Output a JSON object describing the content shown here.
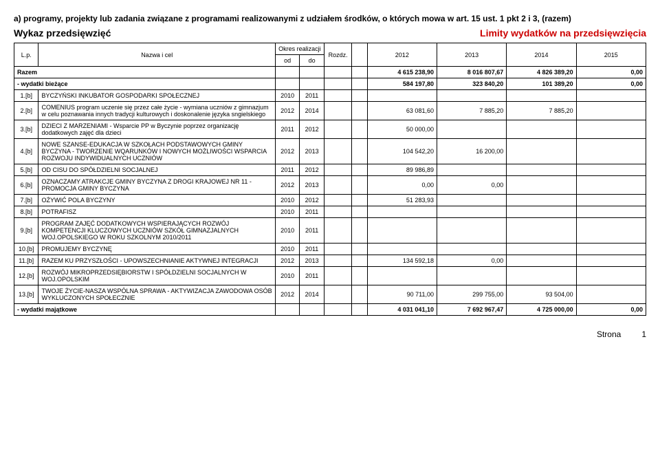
{
  "header": {
    "line_a": "a) programy, projekty lub zadania związane z programami realizowanymi z udziałem środków, o których mowa w art. 15 ust. 1 pkt 2 i 3, (razem)",
    "wykaz": "Wykaz przedsięwzięć",
    "limity": "Limity wydatków na przedsięwzięcia"
  },
  "thead": {
    "lp": "L.p.",
    "nazwa": "Nazwa i cel",
    "okres": "Okres realizacji",
    "od": "od",
    "do": "do",
    "rozdz": "Rozdz.",
    "y2012": "2012",
    "y2013": "2013",
    "y2014": "2014",
    "y2015": "2015"
  },
  "rows": [
    {
      "lp": "Razem",
      "nazwa": "",
      "od": "",
      "do": "",
      "rozdz": "",
      "v": [
        "4 615 238,90",
        "8 016 807,67",
        "4 826 389,20",
        "0,00"
      ],
      "bold": true,
      "merge_lp_nazwa": true
    },
    {
      "lp": "",
      "nazwa": "- wydatki bieżące",
      "od": "",
      "do": "",
      "rozdz": "",
      "v": [
        "584 197,80",
        "323 840,20",
        "101 389,20",
        "0,00"
      ],
      "bold": true,
      "section": true
    },
    {
      "lp": "1.[b]",
      "nazwa": "BYCZYŃSKI INKUBATOR GOSPODARKI SPOŁECZNEJ",
      "od": "2010",
      "do": "2011",
      "rozdz": "",
      "v": [
        "",
        "",
        "",
        ""
      ]
    },
    {
      "lp": "2.[b]",
      "nazwa": "COMENIUS program uczenie się przez całe życie - wymiana uczniów z gimnazjum w celu poznawania innych tradycji kulturowych i doskonalenie języka sngielskiego",
      "od": "2012",
      "do": "2014",
      "rozdz": "",
      "v": [
        "63 081,60",
        "7 885,20",
        "7 885,20",
        ""
      ]
    },
    {
      "lp": "3.[b]",
      "nazwa": "DZIECI Z MARZENIAMI - Wsparcie PP w Byczynie poprzez organizację dodatkowych zajęć dla dzieci",
      "od": "2011",
      "do": "2012",
      "rozdz": "",
      "v": [
        "50 000,00",
        "",
        "",
        ""
      ]
    },
    {
      "lp": "4.[b]",
      "nazwa": "NOWE SZANSE-EDUKACJA W SZKOŁACH PODSTAWOWYCH GMINY BYCZYNA - TWORZENIE WQARUNKÓW I NOWYCH MOŻLIWOŚCI WSPARCIA ROZWOJU INDYWIDUALNYCH UCZNIÓW",
      "od": "2012",
      "do": "2013",
      "rozdz": "",
      "v": [
        "104 542,20",
        "16 200,00",
        "",
        ""
      ]
    },
    {
      "lp": "5.[b]",
      "nazwa": "OD CISU DO SPÓŁDZIELNI SOCJALNEJ",
      "od": "2011",
      "do": "2012",
      "rozdz": "",
      "v": [
        "89 986,89",
        "",
        "",
        ""
      ]
    },
    {
      "lp": "6.[b]",
      "nazwa": "OZNACZAMY ATRAKCJE GMINY BYCZYNA Z DROGI KRAJOWEJ NR 11 - PROMOCJA GMINY BYCZYNA",
      "od": "2012",
      "do": "2013",
      "rozdz": "",
      "v": [
        "0,00",
        "0,00",
        "",
        ""
      ]
    },
    {
      "lp": "7.[b]",
      "nazwa": "OŻYWIĆ POLA BYCZYNY",
      "od": "2010",
      "do": "2012",
      "rozdz": "",
      "v": [
        "51 283,93",
        "",
        "",
        ""
      ]
    },
    {
      "lp": "8.[b]",
      "nazwa": "POTRAFISZ",
      "od": "2010",
      "do": "2011",
      "rozdz": "",
      "v": [
        "",
        "",
        "",
        ""
      ]
    },
    {
      "lp": "9.[b]",
      "nazwa": "PROGRAM ZAJĘĆ DODATKOWYCH WSPIERAJĄCYCH ROZWÓJ KOMPETENCJI KLUCZOWYCH UCZNIÓW SZKÓŁ GIMNAZJALNYCH WOJ.OPOLSKIEGO W ROKU SZKOLNYM 2010/2011",
      "od": "2010",
      "do": "2011",
      "rozdz": "",
      "v": [
        "",
        "",
        "",
        ""
      ]
    },
    {
      "lp": "10.[b]",
      "nazwa": "PROMUJEMY BYCZYNĘ",
      "od": "2010",
      "do": "2011",
      "rozdz": "",
      "v": [
        "",
        "",
        "",
        ""
      ]
    },
    {
      "lp": "11.[b]",
      "nazwa": "RAZEM KU PRZYSZŁOŚCI - UPOWSZECHNIANIE AKTYWNEJ INTEGRACJI",
      "od": "2012",
      "do": "2013",
      "rozdz": "",
      "v": [
        "134 592,18",
        "0,00",
        "",
        ""
      ]
    },
    {
      "lp": "12.[b]",
      "nazwa": "ROZWÓJ MIKROPRZEDSIĘBIORSTW I SPÓŁDZIELNI SOCJALNYCH W WOJ.OPOLSKIM",
      "od": "2010",
      "do": "2011",
      "rozdz": "",
      "v": [
        "",
        "",
        "",
        ""
      ]
    },
    {
      "lp": "13.[b]",
      "nazwa": "TWOJE ŻYCIE-NASZA WSPÓLNA SPRAWA - AKTYWIZACJA ZAWODOWA OSÓB WYKLUCZONYCH SPOŁECZNIE",
      "od": "2012",
      "do": "2014",
      "rozdz": "",
      "v": [
        "90 711,00",
        "299 755,00",
        "93 504,00",
        ""
      ]
    },
    {
      "lp": "",
      "nazwa": "- wydatki majątkowe",
      "od": "",
      "do": "",
      "rozdz": "",
      "v": [
        "4 031 041,10",
        "7 692 967,47",
        "4 725 000,00",
        "0,00"
      ],
      "bold": true,
      "section": true
    }
  ],
  "footer": {
    "strona": "Strona",
    "page": "1"
  }
}
